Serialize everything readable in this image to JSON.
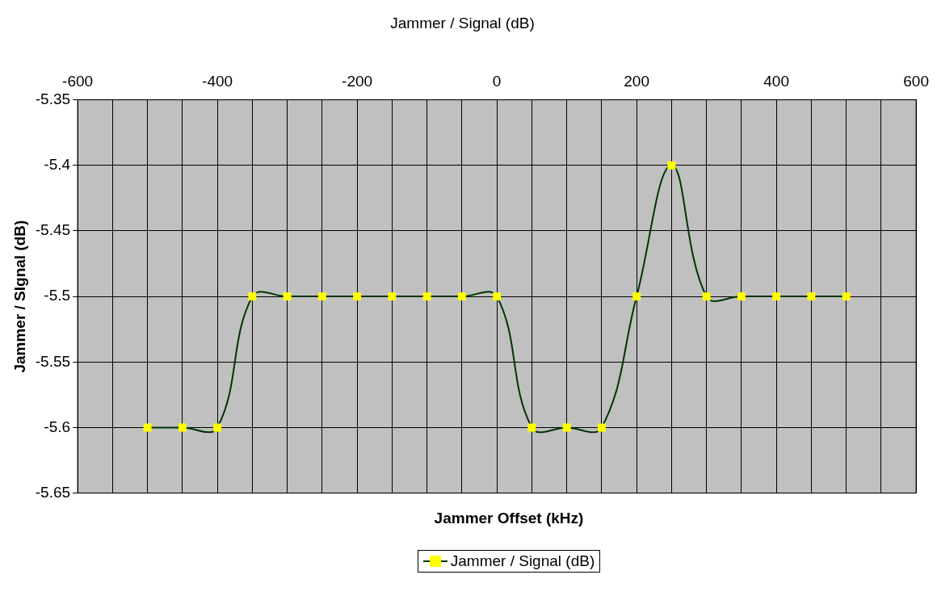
{
  "chart_data": {
    "type": "line",
    "title": "Jammer / Signal (dB)",
    "xlabel": "Jammer Offset (kHz)",
    "ylabel": "Jammer / SIgnal (dB)",
    "x": [
      -500,
      -450,
      -400,
      -350,
      -300,
      -250,
      -200,
      -150,
      -100,
      -50,
      0,
      50,
      100,
      150,
      200,
      250,
      300,
      350,
      400,
      450,
      500
    ],
    "series": [
      {
        "name": "Jammer / Signal (dB)",
        "color": "#003300",
        "values": [
          -5.6,
          -5.6,
          -5.6,
          -5.5,
          -5.5,
          -5.5,
          -5.5,
          -5.5,
          -5.5,
          -5.5,
          -5.5,
          -5.6,
          -5.6,
          -5.6,
          -5.5,
          -5.4,
          -5.5,
          -5.5,
          -5.5,
          -5.5,
          -5.5
        ]
      }
    ],
    "xlim": [
      -600,
      600
    ],
    "xticks": [
      -600,
      {
        "value": -550,
        "label": null
      },
      {
        "value": -500,
        "label": null
      },
      {
        "value": -450,
        "label": null
      },
      -400,
      {
        "value": -350,
        "label": null
      },
      {
        "value": -300,
        "label": null
      },
      {
        "value": -250,
        "label": null
      },
      -200,
      {
        "value": -150,
        "label": null
      },
      {
        "value": -100,
        "label": null
      },
      {
        "value": -50,
        "label": null
      },
      0,
      {
        "value": 50,
        "label": null
      },
      {
        "value": 100,
        "label": null
      },
      {
        "value": 150,
        "label": null
      },
      200,
      {
        "value": 250,
        "label": null
      },
      {
        "value": 300,
        "label": null
      },
      {
        "value": 350,
        "label": null
      },
      400,
      {
        "value": 450,
        "label": null
      },
      {
        "value": 500,
        "label": null
      },
      {
        "value": 550,
        "label": null
      },
      600
    ],
    "ylim": [
      -5.65,
      -5.35
    ],
    "yticks": [
      -5.65,
      -5.6,
      -5.55,
      -5.5,
      -5.45,
      -5.4,
      -5.35
    ],
    "grid": true,
    "legend": "bottom",
    "marker": "square",
    "line_style": "solid"
  }
}
